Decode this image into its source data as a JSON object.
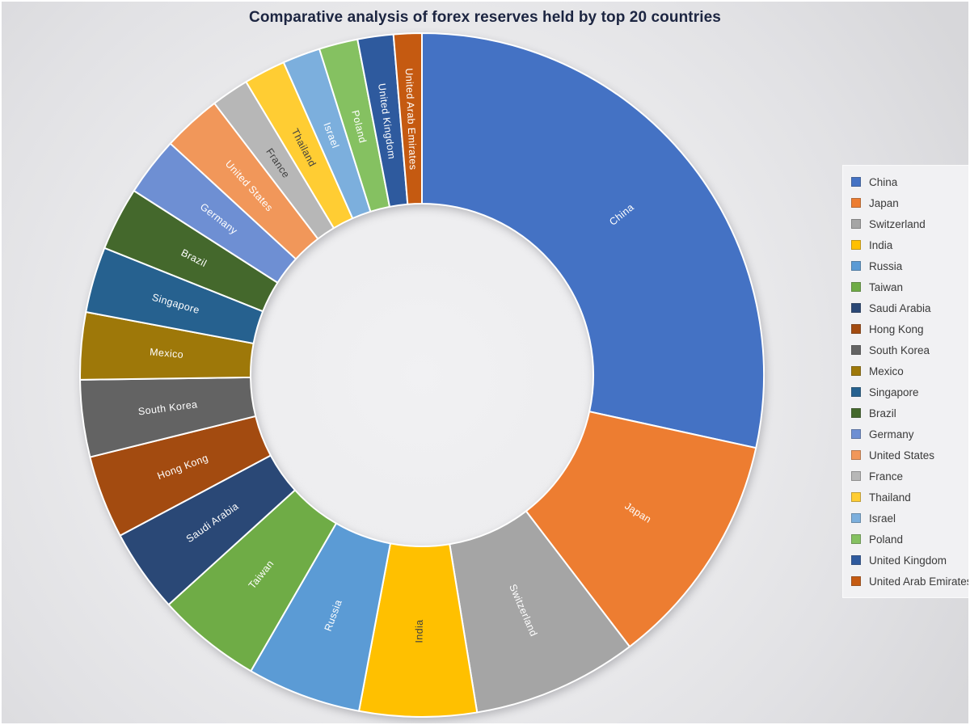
{
  "title": "Comparative analysis of forex reserves held by top 20 countries",
  "chart_data": {
    "type": "pie",
    "subtype": "donut",
    "title": "Comparative analysis of forex reserves held by top 20 countries",
    "value_unit": "share_percent_of_total",
    "direction": "clockwise",
    "start_angle_deg": 0,
    "inner_radius_ratio": 0.5,
    "legend_position": "right",
    "grid": false,
    "categories": [
      "China",
      "Japan",
      "Switzerland",
      "India",
      "Russia",
      "Taiwan",
      "Saudi Arabia",
      "Hong Kong",
      "South Korea",
      "Mexico",
      "Singapore",
      "Brazil",
      "Germany",
      "United States",
      "France",
      "Thailand",
      "Israel",
      "Poland",
      "United Kingdom",
      "United Arab Emirates"
    ],
    "series": [
      {
        "name": "China",
        "value": 28.42,
        "color": "#4472C4",
        "label_color": "#FFFFFF"
      },
      {
        "name": "Japan",
        "value": 11.19,
        "color": "#ED7D31",
        "label_color": "#FFFFFF"
      },
      {
        "name": "Switzerland",
        "value": 7.81,
        "color": "#A5A5A5",
        "label_color": "#FFFFFF"
      },
      {
        "name": "India",
        "value": 5.53,
        "color": "#FFC000",
        "label_color": "#404040"
      },
      {
        "name": "Russia",
        "value": 5.39,
        "color": "#5B9BD5",
        "label_color": "#FFFFFF"
      },
      {
        "name": "Taiwan",
        "value": 4.94,
        "color": "#6FAC46",
        "label_color": "#FFFFFF"
      },
      {
        "name": "Saudi Arabia",
        "value": 3.94,
        "color": "#2A4876",
        "label_color": "#FFFFFF"
      },
      {
        "name": "Hong Kong",
        "value": 3.92,
        "color": "#A34B10",
        "label_color": "#FFFFFF"
      },
      {
        "name": "South Korea",
        "value": 3.64,
        "color": "#636363",
        "label_color": "#FFFFFF"
      },
      {
        "name": "Mexico",
        "value": 3.17,
        "color": "#9E7809",
        "label_color": "#FFFFFF"
      },
      {
        "name": "Singapore",
        "value": 3.11,
        "color": "#26618F",
        "label_color": "#FFFFFF"
      },
      {
        "name": "Brazil",
        "value": 3.0,
        "color": "#44682C",
        "label_color": "#FFFFFF"
      },
      {
        "name": "Germany",
        "value": 2.78,
        "color": "#6E8FD3",
        "label_color": "#FFFFFF"
      },
      {
        "name": "United States",
        "value": 2.78,
        "color": "#F1975A",
        "label_color": "#FFFFFF"
      },
      {
        "name": "France",
        "value": 1.78,
        "color": "#B7B7B7",
        "label_color": "#404040"
      },
      {
        "name": "Thailand",
        "value": 1.97,
        "color": "#FFCD33",
        "label_color": "#404040"
      },
      {
        "name": "Israel",
        "value": 1.78,
        "color": "#7CAFDD",
        "label_color": "#FFFFFF"
      },
      {
        "name": "Poland",
        "value": 1.83,
        "color": "#85C161",
        "label_color": "#FFFFFF"
      },
      {
        "name": "United Kingdom",
        "value": 1.69,
        "color": "#2E5A9E",
        "label_color": "#FFFFFF"
      },
      {
        "name": "United Arab Emirates",
        "value": 1.33,
        "color": "#C55A11",
        "label_color": "#FFFFFF"
      }
    ]
  }
}
